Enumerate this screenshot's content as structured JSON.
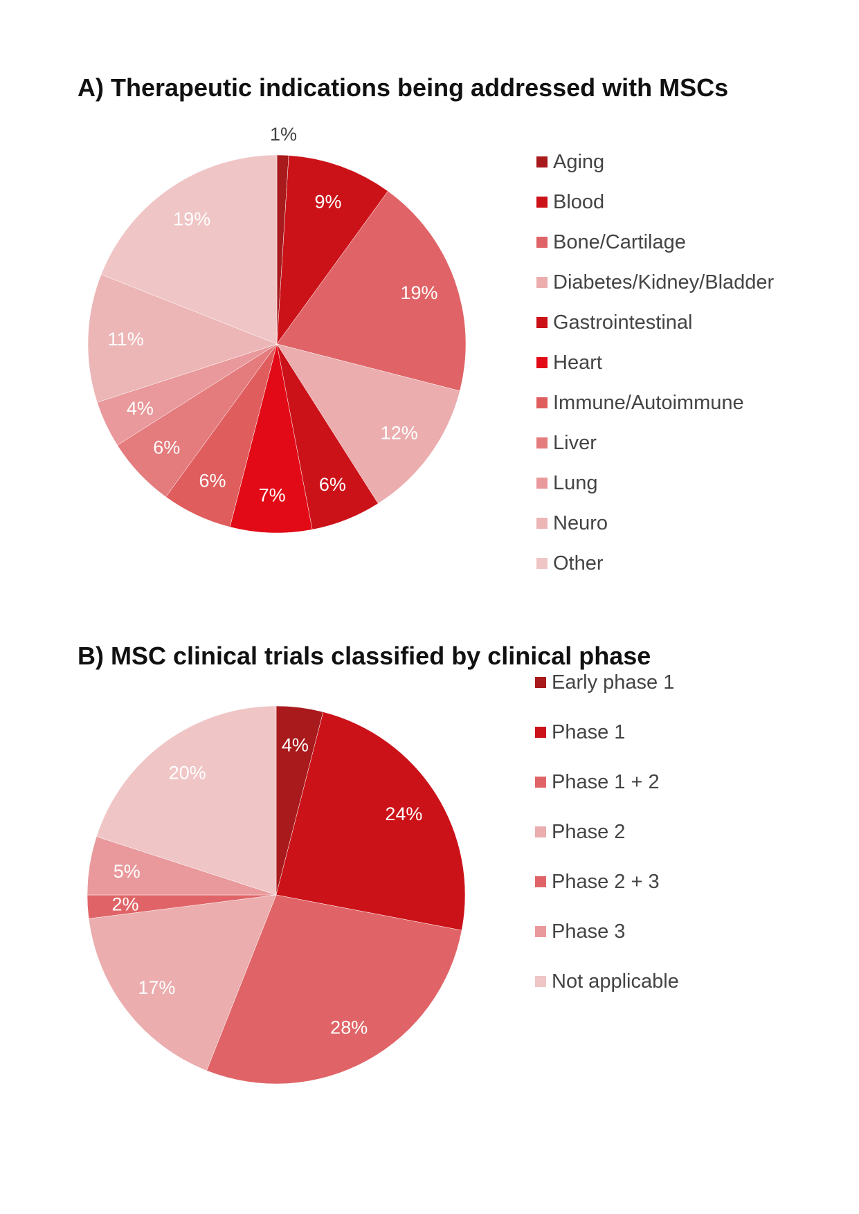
{
  "chart_data": [
    {
      "type": "pie",
      "title": "A) Therapeutic indications being addressed with MSCs",
      "legend_position": "right",
      "slices": [
        {
          "label": "Aging",
          "value": 1,
          "display": "1%",
          "color": "#a81a1c"
        },
        {
          "label": "Blood",
          "value": 9,
          "display": "9%",
          "color": "#cc1219"
        },
        {
          "label": "Bone/Cartilage",
          "value": 19,
          "display": "19%",
          "color": "#e06467"
        },
        {
          "label": "Diabetes/Kidney/Bladder",
          "value": 12,
          "display": "12%",
          "color": "#ebadae"
        },
        {
          "label": "Gastrointestinal",
          "value": 6,
          "display": "6%",
          "color": "#cc1219"
        },
        {
          "label": "Heart",
          "value": 7,
          "display": "7%",
          "color": "#e20a16"
        },
        {
          "label": "Immune/Autoimmune",
          "value": 6,
          "display": "6%",
          "color": "#e05d5e"
        },
        {
          "label": "Liver",
          "value": 6,
          "display": "6%",
          "color": "#e47b7d"
        },
        {
          "label": "Lung",
          "value": 4,
          "display": "4%",
          "color": "#e9999b"
        },
        {
          "label": "Neuro",
          "value": 11,
          "display": "11%",
          "color": "#ecb6b7"
        },
        {
          "label": "Other",
          "value": 19,
          "display": "19%",
          "color": "#f0c5c6"
        }
      ]
    },
    {
      "type": "pie",
      "title": "B) MSC clinical trials classified by clinical phase",
      "legend_position": "right",
      "slices": [
        {
          "label": "Early phase 1",
          "value": 4,
          "display": "4%",
          "color": "#a81a1c"
        },
        {
          "label": "Phase 1",
          "value": 24,
          "display": "24%",
          "color": "#cc1219"
        },
        {
          "label": "Phase 1 + 2",
          "value": 28,
          "display": "28%",
          "color": "#e06467"
        },
        {
          "label": "Phase 2",
          "value": 17,
          "display": "17%",
          "color": "#ebadae"
        },
        {
          "label": "Phase 2 + 3",
          "value": 2,
          "display": "2%",
          "color": "#e06467"
        },
        {
          "label": "Phase 3",
          "value": 5,
          "display": "5%",
          "color": "#e9999b"
        },
        {
          "label": "Not applicable",
          "value": 20,
          "display": "20%",
          "color": "#f0c5c6"
        }
      ]
    }
  ]
}
